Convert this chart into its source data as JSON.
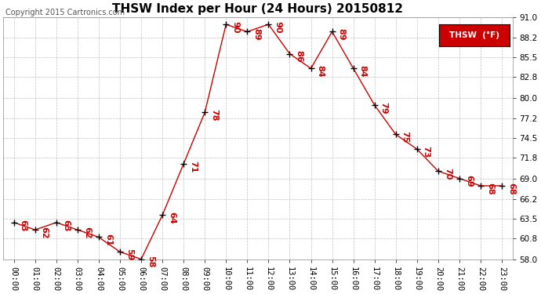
{
  "title": "THSW Index per Hour (24 Hours) 20150812",
  "copyright": "Copyright 2015 Cartronics.com",
  "legend_label": "THSW  (°F)",
  "hours": [
    0,
    1,
    2,
    3,
    4,
    5,
    6,
    7,
    8,
    9,
    10,
    11,
    12,
    13,
    14,
    15,
    16,
    17,
    18,
    19,
    20,
    21,
    22,
    23
  ],
  "values": [
    63,
    62,
    63,
    62,
    61,
    59,
    58,
    64,
    71,
    78,
    90,
    89,
    90,
    86,
    84,
    89,
    84,
    79,
    75,
    73,
    70,
    69,
    68,
    68
  ],
  "ylim": [
    58.0,
    91.0
  ],
  "yticks": [
    58.0,
    60.8,
    63.5,
    66.2,
    69.0,
    71.8,
    74.5,
    77.2,
    80.0,
    82.8,
    85.5,
    88.2,
    91.0
  ],
  "line_color": "#cc0000",
  "marker_color": "#000000",
  "label_color": "#cc0000",
  "bg_color": "#ffffff",
  "grid_color": "#c0c0c0",
  "title_fontsize": 11,
  "label_fontsize": 8,
  "tick_fontsize": 7.5,
  "copyright_fontsize": 7,
  "legend_bg": "#cc0000",
  "legend_text_color": "#ffffff",
  "legend_fontsize": 7.5
}
